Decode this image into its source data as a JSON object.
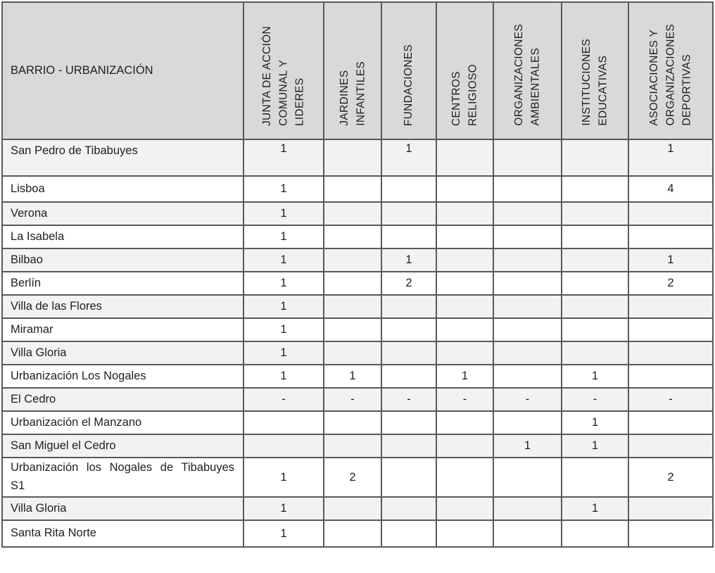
{
  "table": {
    "corner_header": "BARRIO - URBANIZACIÓN",
    "column_headers": [
      "JUNTA DE ACCIÓN\nCOMUNAL Y\nLIDERES",
      "JARDINES\nINFANTILES",
      "FUNDACIONES",
      "CENTROS\nRELIGIOSO",
      "ORGANIZACIONES\nAMBIENTALES",
      "INSTITUCIONES\nEDUCATIVAS",
      "ASOCIACIONES Y\nORGANIZACIONES\nDEPORTIVAS"
    ],
    "rows": [
      {
        "name": "San Pedro de Tibabuyes",
        "values": [
          "1",
          "",
          "1",
          "",
          "",
          "",
          "1"
        ]
      },
      {
        "name": "Lisboa",
        "values": [
          "1",
          "",
          "",
          "",
          "",
          "",
          "4"
        ]
      },
      {
        "name": "Verona",
        "values": [
          "1",
          "",
          "",
          "",
          "",
          "",
          ""
        ]
      },
      {
        "name": "La Isabela",
        "values": [
          "1",
          "",
          "",
          "",
          "",
          "",
          ""
        ]
      },
      {
        "name": "Bilbao",
        "values": [
          "1",
          "",
          "1",
          "",
          "",
          "",
          "1"
        ]
      },
      {
        "name": "Berlín",
        "values": [
          "1",
          "",
          "2",
          "",
          "",
          "",
          "2"
        ]
      },
      {
        "name": "Villa de las Flores",
        "values": [
          "1",
          "",
          "",
          "",
          "",
          "",
          ""
        ]
      },
      {
        "name": "Miramar",
        "values": [
          "1",
          "",
          "",
          "",
          "",
          "",
          ""
        ]
      },
      {
        "name": "Villa Gloria",
        "values": [
          "1",
          "",
          "",
          "",
          "",
          "",
          ""
        ]
      },
      {
        "name": "Urbanización Los Nogales",
        "values": [
          "1",
          "1",
          "",
          "1",
          "",
          "1",
          ""
        ]
      },
      {
        "name": "El Cedro",
        "values": [
          "-",
          "-",
          "-",
          "-",
          "-",
          "-",
          "-"
        ]
      },
      {
        "name": "Urbanización el Manzano",
        "values": [
          "",
          "",
          "",
          "",
          "",
          "1",
          ""
        ]
      },
      {
        "name": "San Miguel el Cedro",
        "values": [
          "",
          "",
          "",
          "",
          "1",
          "1",
          ""
        ]
      },
      {
        "name": "Urbanización los Nogales de Tibabuyes S1",
        "values": [
          "1",
          "2",
          "",
          "",
          "",
          "",
          "2"
        ]
      },
      {
        "name": "Villa Gloria",
        "values": [
          "1",
          "",
          "",
          "",
          "",
          "1",
          ""
        ]
      },
      {
        "name": "Santa Rita Norte",
        "values": [
          "1",
          "",
          "",
          "",
          "",
          "",
          ""
        ]
      }
    ],
    "colors": {
      "header_bg": "#d9d9d9",
      "alt_row_bg": "#f2f2f2",
      "row_bg": "#ffffff",
      "border": "#595959",
      "text": "#1f1f1f"
    }
  }
}
